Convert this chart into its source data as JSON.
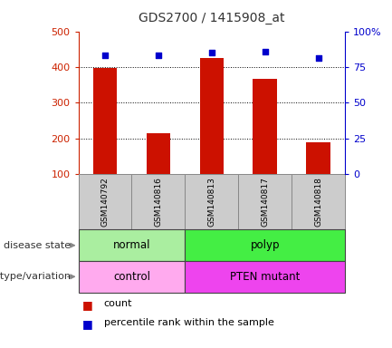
{
  "title": "GDS2700 / 1415908_at",
  "samples": [
    "GSM140792",
    "GSM140816",
    "GSM140813",
    "GSM140817",
    "GSM140818"
  ],
  "counts": [
    398,
    215,
    425,
    367,
    190
  ],
  "percentile_ranks": [
    83,
    83,
    85,
    86,
    81
  ],
  "left_ylim": [
    100,
    500
  ],
  "left_yticks": [
    100,
    200,
    300,
    400,
    500
  ],
  "right_ylim": [
    0,
    100
  ],
  "right_yticks": [
    0,
    25,
    50,
    75,
    100
  ],
  "right_yticklabels": [
    "0",
    "25",
    "50",
    "75",
    "100%"
  ],
  "bar_color": "#cc1100",
  "dot_color": "#0000cc",
  "disease_state": [
    {
      "label": "normal",
      "samples": [
        0,
        1
      ],
      "color": "#aaeea0"
    },
    {
      "label": "polyp",
      "samples": [
        2,
        3,
        4
      ],
      "color": "#44ee44"
    }
  ],
  "genotype": [
    {
      "label": "control",
      "samples": [
        0,
        1
      ],
      "color": "#ffaaee"
    },
    {
      "label": "PTEN mutant",
      "samples": [
        2,
        3,
        4
      ],
      "color": "#ee44ee"
    }
  ],
  "legend_count_label": "count",
  "legend_pct_label": "percentile rank within the sample",
  "left_tick_color": "#cc2200",
  "right_tick_color": "#0000cc",
  "grid_color": "#000000",
  "bg_color": "#ffffff",
  "sample_bg_color": "#cccccc",
  "left_label": "disease state",
  "left_label2": "genotype/variation",
  "arrow_color": "#888888"
}
